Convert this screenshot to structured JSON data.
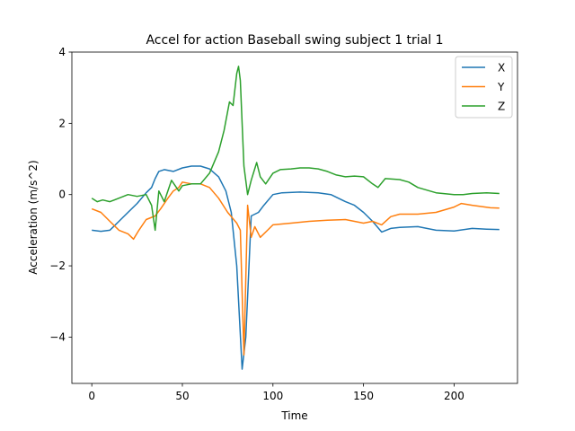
{
  "chart_data": {
    "type": "line",
    "title": "Accel for action Baseball swing subject 1 trial 1",
    "xlabel": "Time",
    "ylabel": "Acceleration (m/s^2)",
    "xlim": [
      -11,
      235
    ],
    "ylim": [
      -5.3,
      4.0
    ],
    "xticks": [
      0,
      50,
      100,
      150,
      200
    ],
    "yticks": [
      -4,
      -2,
      0,
      2,
      4
    ],
    "legend_position": "top-right",
    "grid": false,
    "series": [
      {
        "name": "X",
        "color": "#1f77b4",
        "points": [
          [
            0,
            -1.0
          ],
          [
            5,
            -1.03
          ],
          [
            10,
            -1.0
          ],
          [
            15,
            -0.75
          ],
          [
            20,
            -0.5
          ],
          [
            25,
            -0.25
          ],
          [
            30,
            0.05
          ],
          [
            33,
            0.2
          ],
          [
            35,
            0.45
          ],
          [
            37,
            0.65
          ],
          [
            40,
            0.7
          ],
          [
            45,
            0.65
          ],
          [
            50,
            0.75
          ],
          [
            55,
            0.8
          ],
          [
            60,
            0.8
          ],
          [
            65,
            0.72
          ],
          [
            70,
            0.5
          ],
          [
            74,
            0.1
          ],
          [
            77,
            -0.5
          ],
          [
            80,
            -2.0
          ],
          [
            83,
            -4.9
          ],
          [
            85,
            -4.0
          ],
          [
            88,
            -0.6
          ],
          [
            92,
            -0.5
          ],
          [
            95,
            -0.3
          ],
          [
            100,
            0.0
          ],
          [
            105,
            0.05
          ],
          [
            115,
            0.07
          ],
          [
            125,
            0.05
          ],
          [
            132,
            0.0
          ],
          [
            140,
            -0.2
          ],
          [
            145,
            -0.3
          ],
          [
            150,
            -0.5
          ],
          [
            155,
            -0.75
          ],
          [
            160,
            -1.05
          ],
          [
            165,
            -0.95
          ],
          [
            170,
            -0.92
          ],
          [
            180,
            -0.9
          ],
          [
            190,
            -1.0
          ],
          [
            200,
            -1.02
          ],
          [
            210,
            -0.95
          ],
          [
            218,
            -0.97
          ],
          [
            225,
            -0.98
          ]
        ]
      },
      {
        "name": "Y",
        "color": "#ff7f0e",
        "points": [
          [
            0,
            -0.4
          ],
          [
            5,
            -0.5
          ],
          [
            10,
            -0.75
          ],
          [
            15,
            -1.0
          ],
          [
            20,
            -1.1
          ],
          [
            23,
            -1.25
          ],
          [
            26,
            -1.0
          ],
          [
            30,
            -0.7
          ],
          [
            35,
            -0.6
          ],
          [
            38,
            -0.4
          ],
          [
            42,
            -0.1
          ],
          [
            45,
            0.1
          ],
          [
            48,
            0.2
          ],
          [
            50,
            0.35
          ],
          [
            55,
            0.3
          ],
          [
            60,
            0.3
          ],
          [
            65,
            0.2
          ],
          [
            70,
            -0.1
          ],
          [
            75,
            -0.5
          ],
          [
            80,
            -0.8
          ],
          [
            82,
            -1.0
          ],
          [
            84,
            -4.5
          ],
          [
            86,
            -0.3
          ],
          [
            88,
            -1.2
          ],
          [
            90,
            -0.9
          ],
          [
            93,
            -1.2
          ],
          [
            97,
            -1.0
          ],
          [
            100,
            -0.85
          ],
          [
            110,
            -0.8
          ],
          [
            120,
            -0.75
          ],
          [
            130,
            -0.72
          ],
          [
            140,
            -0.7
          ],
          [
            145,
            -0.75
          ],
          [
            150,
            -0.8
          ],
          [
            155,
            -0.75
          ],
          [
            160,
            -0.85
          ],
          [
            165,
            -0.62
          ],
          [
            170,
            -0.55
          ],
          [
            180,
            -0.55
          ],
          [
            190,
            -0.5
          ],
          [
            200,
            -0.35
          ],
          [
            204,
            -0.25
          ],
          [
            210,
            -0.3
          ],
          [
            220,
            -0.37
          ],
          [
            225,
            -0.38
          ]
        ]
      },
      {
        "name": "Z",
        "color": "#2ca02c",
        "points": [
          [
            0,
            -0.1
          ],
          [
            3,
            -0.2
          ],
          [
            6,
            -0.15
          ],
          [
            10,
            -0.2
          ],
          [
            15,
            -0.1
          ],
          [
            20,
            0.0
          ],
          [
            25,
            -0.05
          ],
          [
            30,
            0.0
          ],
          [
            33,
            -0.3
          ],
          [
            35,
            -1.0
          ],
          [
            37,
            0.1
          ],
          [
            40,
            -0.2
          ],
          [
            44,
            0.4
          ],
          [
            48,
            0.1
          ],
          [
            50,
            0.25
          ],
          [
            55,
            0.3
          ],
          [
            60,
            0.3
          ],
          [
            65,
            0.6
          ],
          [
            70,
            1.2
          ],
          [
            73,
            1.8
          ],
          [
            76,
            2.6
          ],
          [
            78,
            2.5
          ],
          [
            80,
            3.4
          ],
          [
            81,
            3.6
          ],
          [
            82,
            3.2
          ],
          [
            84,
            0.8
          ],
          [
            86,
            0.0
          ],
          [
            88,
            0.4
          ],
          [
            91,
            0.9
          ],
          [
            93,
            0.5
          ],
          [
            96,
            0.3
          ],
          [
            100,
            0.6
          ],
          [
            104,
            0.7
          ],
          [
            110,
            0.72
          ],
          [
            115,
            0.75
          ],
          [
            120,
            0.75
          ],
          [
            125,
            0.72
          ],
          [
            130,
            0.65
          ],
          [
            135,
            0.55
          ],
          [
            140,
            0.5
          ],
          [
            145,
            0.52
          ],
          [
            150,
            0.5
          ],
          [
            155,
            0.3
          ],
          [
            158,
            0.2
          ],
          [
            162,
            0.45
          ],
          [
            170,
            0.42
          ],
          [
            175,
            0.35
          ],
          [
            180,
            0.2
          ],
          [
            190,
            0.05
          ],
          [
            200,
            0.0
          ],
          [
            205,
            0.0
          ],
          [
            210,
            0.03
          ],
          [
            218,
            0.05
          ],
          [
            225,
            0.03
          ]
        ]
      }
    ]
  }
}
